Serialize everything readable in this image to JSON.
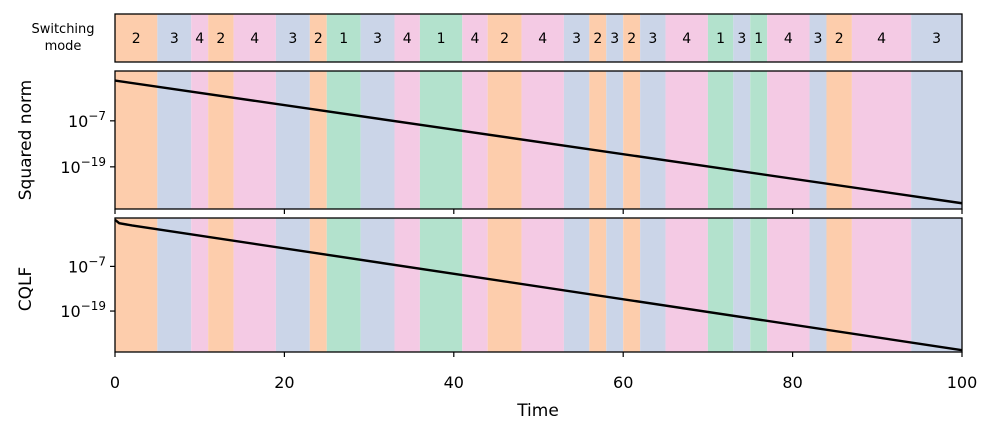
{
  "chart_data": {
    "type": "line",
    "xlabel": "Time",
    "x_ticks": [
      "0",
      "20",
      "40",
      "60",
      "80",
      "100"
    ],
    "xlim": [
      0,
      100
    ],
    "mode_colors": {
      "1": "#b3e2cd",
      "2": "#fdcdac",
      "3": "#cbd5e8",
      "4": "#f4cae4"
    },
    "mode_panel": {
      "label_line1": "Switching",
      "label_line2": "mode",
      "segments": [
        {
          "start": 0,
          "end": 5,
          "mode": "2"
        },
        {
          "start": 5,
          "end": 9,
          "mode": "3"
        },
        {
          "start": 9,
          "end": 11,
          "mode": "4"
        },
        {
          "start": 11,
          "end": 14,
          "mode": "2"
        },
        {
          "start": 14,
          "end": 19,
          "mode": "4"
        },
        {
          "start": 19,
          "end": 23,
          "mode": "3"
        },
        {
          "start": 23,
          "end": 25,
          "mode": "2"
        },
        {
          "start": 25,
          "end": 29,
          "mode": "1"
        },
        {
          "start": 29,
          "end": 33,
          "mode": "3"
        },
        {
          "start": 33,
          "end": 36,
          "mode": "4"
        },
        {
          "start": 36,
          "end": 41,
          "mode": "1"
        },
        {
          "start": 41,
          "end": 44,
          "mode": "4"
        },
        {
          "start": 44,
          "end": 48,
          "mode": "2"
        },
        {
          "start": 48,
          "end": 53,
          "mode": "4"
        },
        {
          "start": 53,
          "end": 56,
          "mode": "3"
        },
        {
          "start": 56,
          "end": 58,
          "mode": "2"
        },
        {
          "start": 58,
          "end": 60,
          "mode": "3"
        },
        {
          "start": 60,
          "end": 62,
          "mode": "2"
        },
        {
          "start": 62,
          "end": 65,
          "mode": "3"
        },
        {
          "start": 65,
          "end": 70,
          "mode": "4"
        },
        {
          "start": 70,
          "end": 73,
          "mode": "1"
        },
        {
          "start": 73,
          "end": 75,
          "mode": "3"
        },
        {
          "start": 75,
          "end": 77,
          "mode": "1"
        },
        {
          "start": 77,
          "end": 82,
          "mode": "4"
        },
        {
          "start": 82,
          "end": 84,
          "mode": "3"
        },
        {
          "start": 84,
          "end": 87,
          "mode": "2"
        },
        {
          "start": 87,
          "end": 94,
          "mode": "4"
        },
        {
          "start": 94,
          "end": 100,
          "mode": "3"
        }
      ]
    },
    "panels": [
      {
        "ylabel": "Squared norm",
        "scale": "log",
        "ylim_exp": [
          -30,
          6
        ],
        "y_ticks": [
          {
            "exp": -7,
            "label": "10",
            "sup": "−7"
          },
          {
            "exp": -19,
            "label": "10",
            "sup": "−19"
          }
        ],
        "series": {
          "x": [
            0,
            100
          ],
          "log10_y": [
            3.5,
            -28.5
          ]
        }
      },
      {
        "ylabel": "CQLF",
        "scale": "log",
        "ylim_exp": [
          -30,
          6
        ],
        "y_ticks": [
          {
            "exp": -7,
            "label": "10",
            "sup": "−7"
          },
          {
            "exp": -19,
            "label": "10",
            "sup": "−19"
          }
        ],
        "series": {
          "x": [
            0,
            0.5,
            2,
            100
          ],
          "log10_y": [
            5.5,
            4.6,
            4.0,
            -29.5
          ]
        }
      }
    ]
  }
}
